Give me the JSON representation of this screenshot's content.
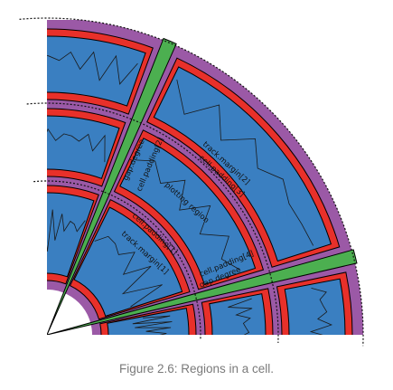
{
  "caption": "Figure 2.6: Regions in a cell.",
  "labels": {
    "gap_degree_left": "gap.degree",
    "cell_padding_left": "cell.padding[2]",
    "track_margin_2": "track.margin[2]",
    "cell_padding_3": "cell.padding[3]",
    "plotting_region": "plotting region",
    "cell_padding_1": "cell.padding[1]",
    "track_margin_1": "track.margin[1]",
    "cell_padding_4": "cell.padding[4]",
    "gap_degree_right": "gap.degree"
  },
  "colors": {
    "cell_background": "#9b59a6",
    "cell_padding": "#e8302a",
    "plotting_region": "#3a7fc1",
    "gap": "#4caf50",
    "outline": "#000000"
  }
}
